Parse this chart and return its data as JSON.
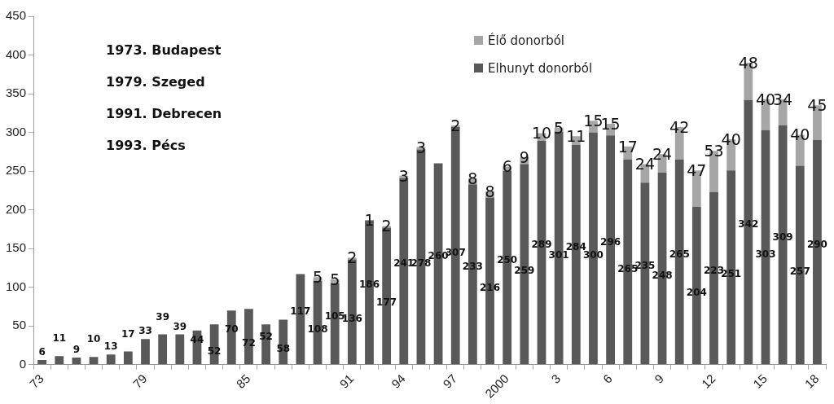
{
  "chart_data": {
    "type": "bar",
    "stacked": true,
    "grid": false,
    "legend": "top right",
    "data_labels": true,
    "categories": [
      "73",
      null,
      null,
      null,
      null,
      null,
      "79",
      null,
      null,
      null,
      null,
      null,
      "85",
      null,
      null,
      null,
      null,
      null,
      "91",
      null,
      null,
      "94",
      null,
      null,
      "97",
      null,
      null,
      "2000",
      null,
      null,
      "3",
      null,
      null,
      "6",
      null,
      null,
      "9",
      null,
      null,
      "12",
      null,
      null,
      "15",
      null,
      null,
      "18"
    ],
    "series": [
      {
        "name": "Elhunyt donorból",
        "color": "#595959",
        "values": [
          6,
          11,
          9,
          10,
          13,
          17,
          33,
          39,
          39,
          44,
          52,
          70,
          72,
          52,
          58,
          117,
          108,
          105,
          136,
          186,
          177,
          241,
          278,
          260,
          307,
          233,
          216,
          250,
          259,
          289,
          301,
          284,
          300,
          296,
          265,
          235,
          248,
          265,
          204,
          223,
          251,
          342,
          303,
          309,
          257,
          290
        ]
      },
      {
        "name": "Élő donorból",
        "color": "#a6a6a6",
        "values": [
          null,
          null,
          null,
          null,
          null,
          null,
          null,
          null,
          null,
          null,
          null,
          null,
          null,
          null,
          null,
          null,
          5,
          5,
          2,
          1,
          2,
          3,
          3,
          null,
          2,
          8,
          8,
          6,
          9,
          10,
          5,
          11,
          15,
          15,
          17,
          24,
          24,
          42,
          47,
          53,
          40,
          48,
          40,
          34,
          40,
          45
        ]
      }
    ],
    "ylim": [
      0,
      450
    ],
    "yticks": [
      0,
      50,
      100,
      150,
      200,
      250,
      300,
      350,
      400,
      450
    ],
    "annotations": [
      "1973. Budapest",
      "1979. Szeged",
      "1991. Debrecen",
      "1993. Pécs"
    ]
  }
}
